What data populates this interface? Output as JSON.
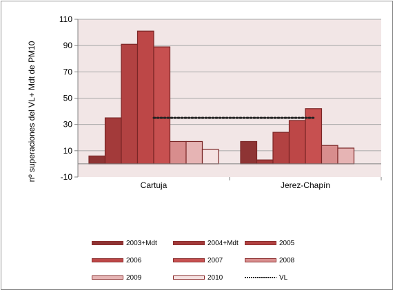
{
  "chart_data": {
    "type": "bar",
    "title": "",
    "ylabel": "nº superaciones del VL+ Mdt  de PM10",
    "xlabel": "",
    "ylim": [
      -10,
      110
    ],
    "yticks": [
      -10,
      10,
      30,
      50,
      70,
      90,
      110
    ],
    "categories": [
      "Cartuja",
      "Jerez-Chapín"
    ],
    "series": [
      {
        "name": "2003+Mdt",
        "values": [
          6,
          17
        ],
        "color": "#8e3434"
      },
      {
        "name": "2004+Mdt",
        "values": [
          35,
          3
        ],
        "color": "#a33a3a"
      },
      {
        "name": "2005",
        "values": [
          91,
          24
        ],
        "color": "#b24242"
      },
      {
        "name": "2006",
        "values": [
          101,
          33
        ],
        "color": "#bd4747"
      },
      {
        "name": "2007",
        "values": [
          89,
          42
        ],
        "color": "#c75050"
      },
      {
        "name": "2008",
        "values": [
          17,
          14
        ],
        "color": "#d88d8d"
      },
      {
        "name": "2009",
        "values": [
          17,
          12
        ],
        "color": "#e6b4b4"
      },
      {
        "name": "2010",
        "values": [
          11,
          null
        ],
        "color": "#f5e1e1"
      }
    ],
    "reference_line": {
      "name": "VL",
      "value": 35,
      "style": "dotted"
    },
    "grid": true,
    "legend_position": "bottom",
    "plot_background": "#f2e6e6"
  }
}
